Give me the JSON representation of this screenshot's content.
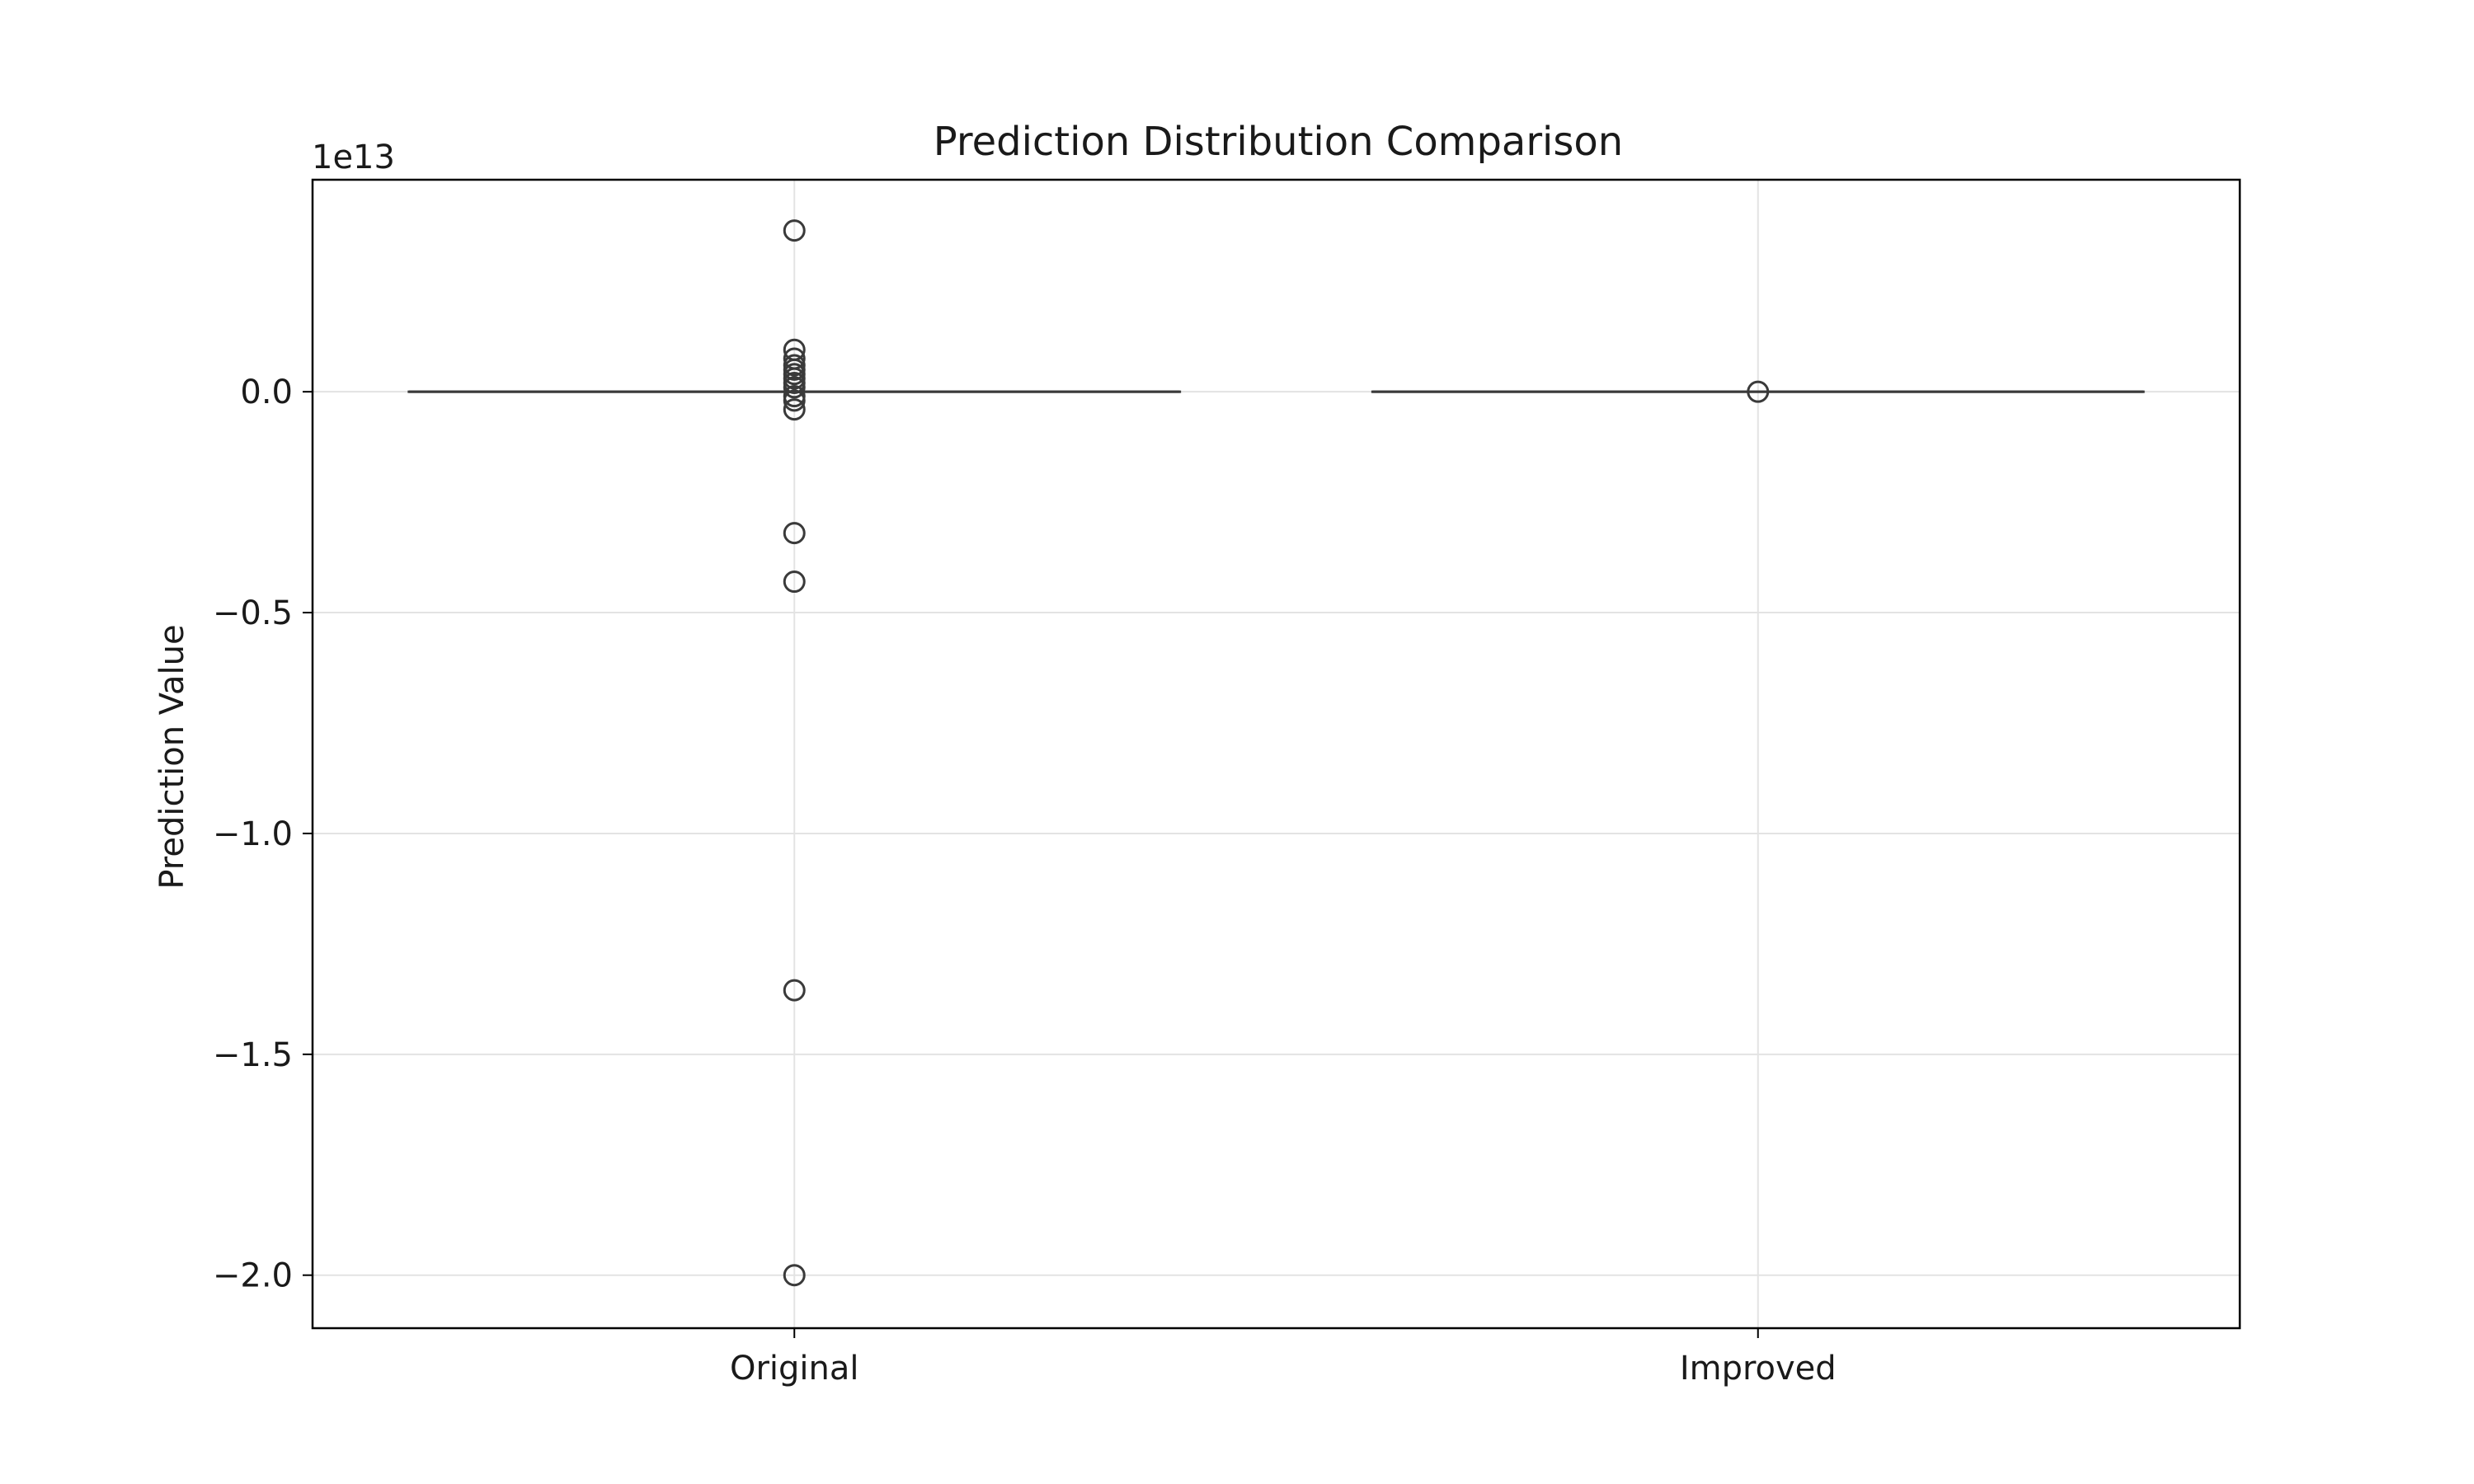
{
  "chart_data": {
    "type": "box",
    "title": "Prediction Distribution Comparison",
    "xlabel": "",
    "ylabel": "Prediction Value",
    "y_offset_label": "1e13",
    "y_scale_factor": 10000000000000,
    "categories": [
      "Original",
      "Improved"
    ],
    "ylim": [
      -2.12,
      0.48
    ],
    "yticks": [
      0.0,
      -0.5,
      -1.0,
      -1.5,
      -2.0
    ],
    "ytick_labels": [
      "0.0",
      "−0.5",
      "−1.0",
      "−1.5",
      "−2.0"
    ],
    "grid": true,
    "series": [
      {
        "category": "Original",
        "median": 0.0,
        "q1": 0.0,
        "q3": 0.0,
        "whisker_low": 0.0,
        "whisker_high": 0.0,
        "outliers": [
          0.365,
          0.095,
          0.075,
          0.06,
          0.05,
          0.04,
          0.03,
          0.02,
          0.01,
          -0.01,
          -0.02,
          -0.04,
          -0.32,
          -0.43,
          -1.355,
          -2.0
        ]
      },
      {
        "category": "Improved",
        "median": 0.0,
        "q1": 0.0,
        "q3": 0.0,
        "whisker_low": 0.0,
        "whisker_high": 0.0,
        "outliers": [
          0.0
        ]
      }
    ],
    "colors": {
      "box_line": "#3a3a3a",
      "grid": "#e3e3e3",
      "axes": "#000000"
    }
  }
}
